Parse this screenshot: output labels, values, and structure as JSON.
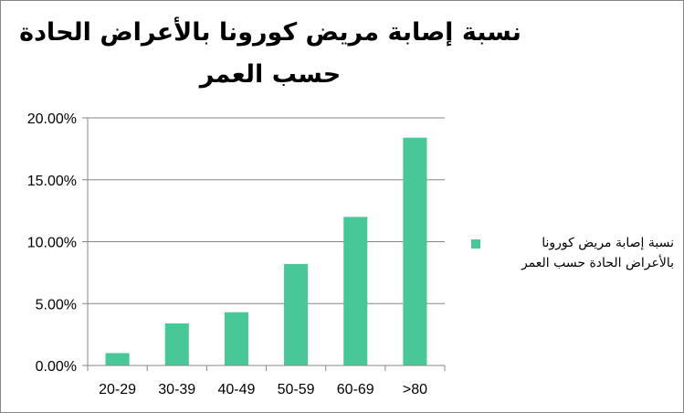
{
  "chart_data": {
    "type": "bar",
    "title": "نسبة إصابة مريض كورونا بالأعراض الحادة حسب العمر",
    "categories": [
      "20-29",
      "30-39",
      "40-49",
      "50-59",
      "60-69",
      ">80"
    ],
    "series": [
      {
        "name": "نسبة إصابة مريض كورونا بالأعراض الحادة حسب العمر",
        "values": [
          1.0,
          3.4,
          4.3,
          8.2,
          12.0,
          18.4
        ],
        "color": "#47C896"
      }
    ],
    "y_ticks": [
      "0.00%",
      "5.00%",
      "10.00%",
      "15.00%",
      "20.00%"
    ],
    "ylim": [
      0,
      20
    ],
    "xlabel": "",
    "ylabel": "",
    "grid": true,
    "legend_position": "right"
  }
}
